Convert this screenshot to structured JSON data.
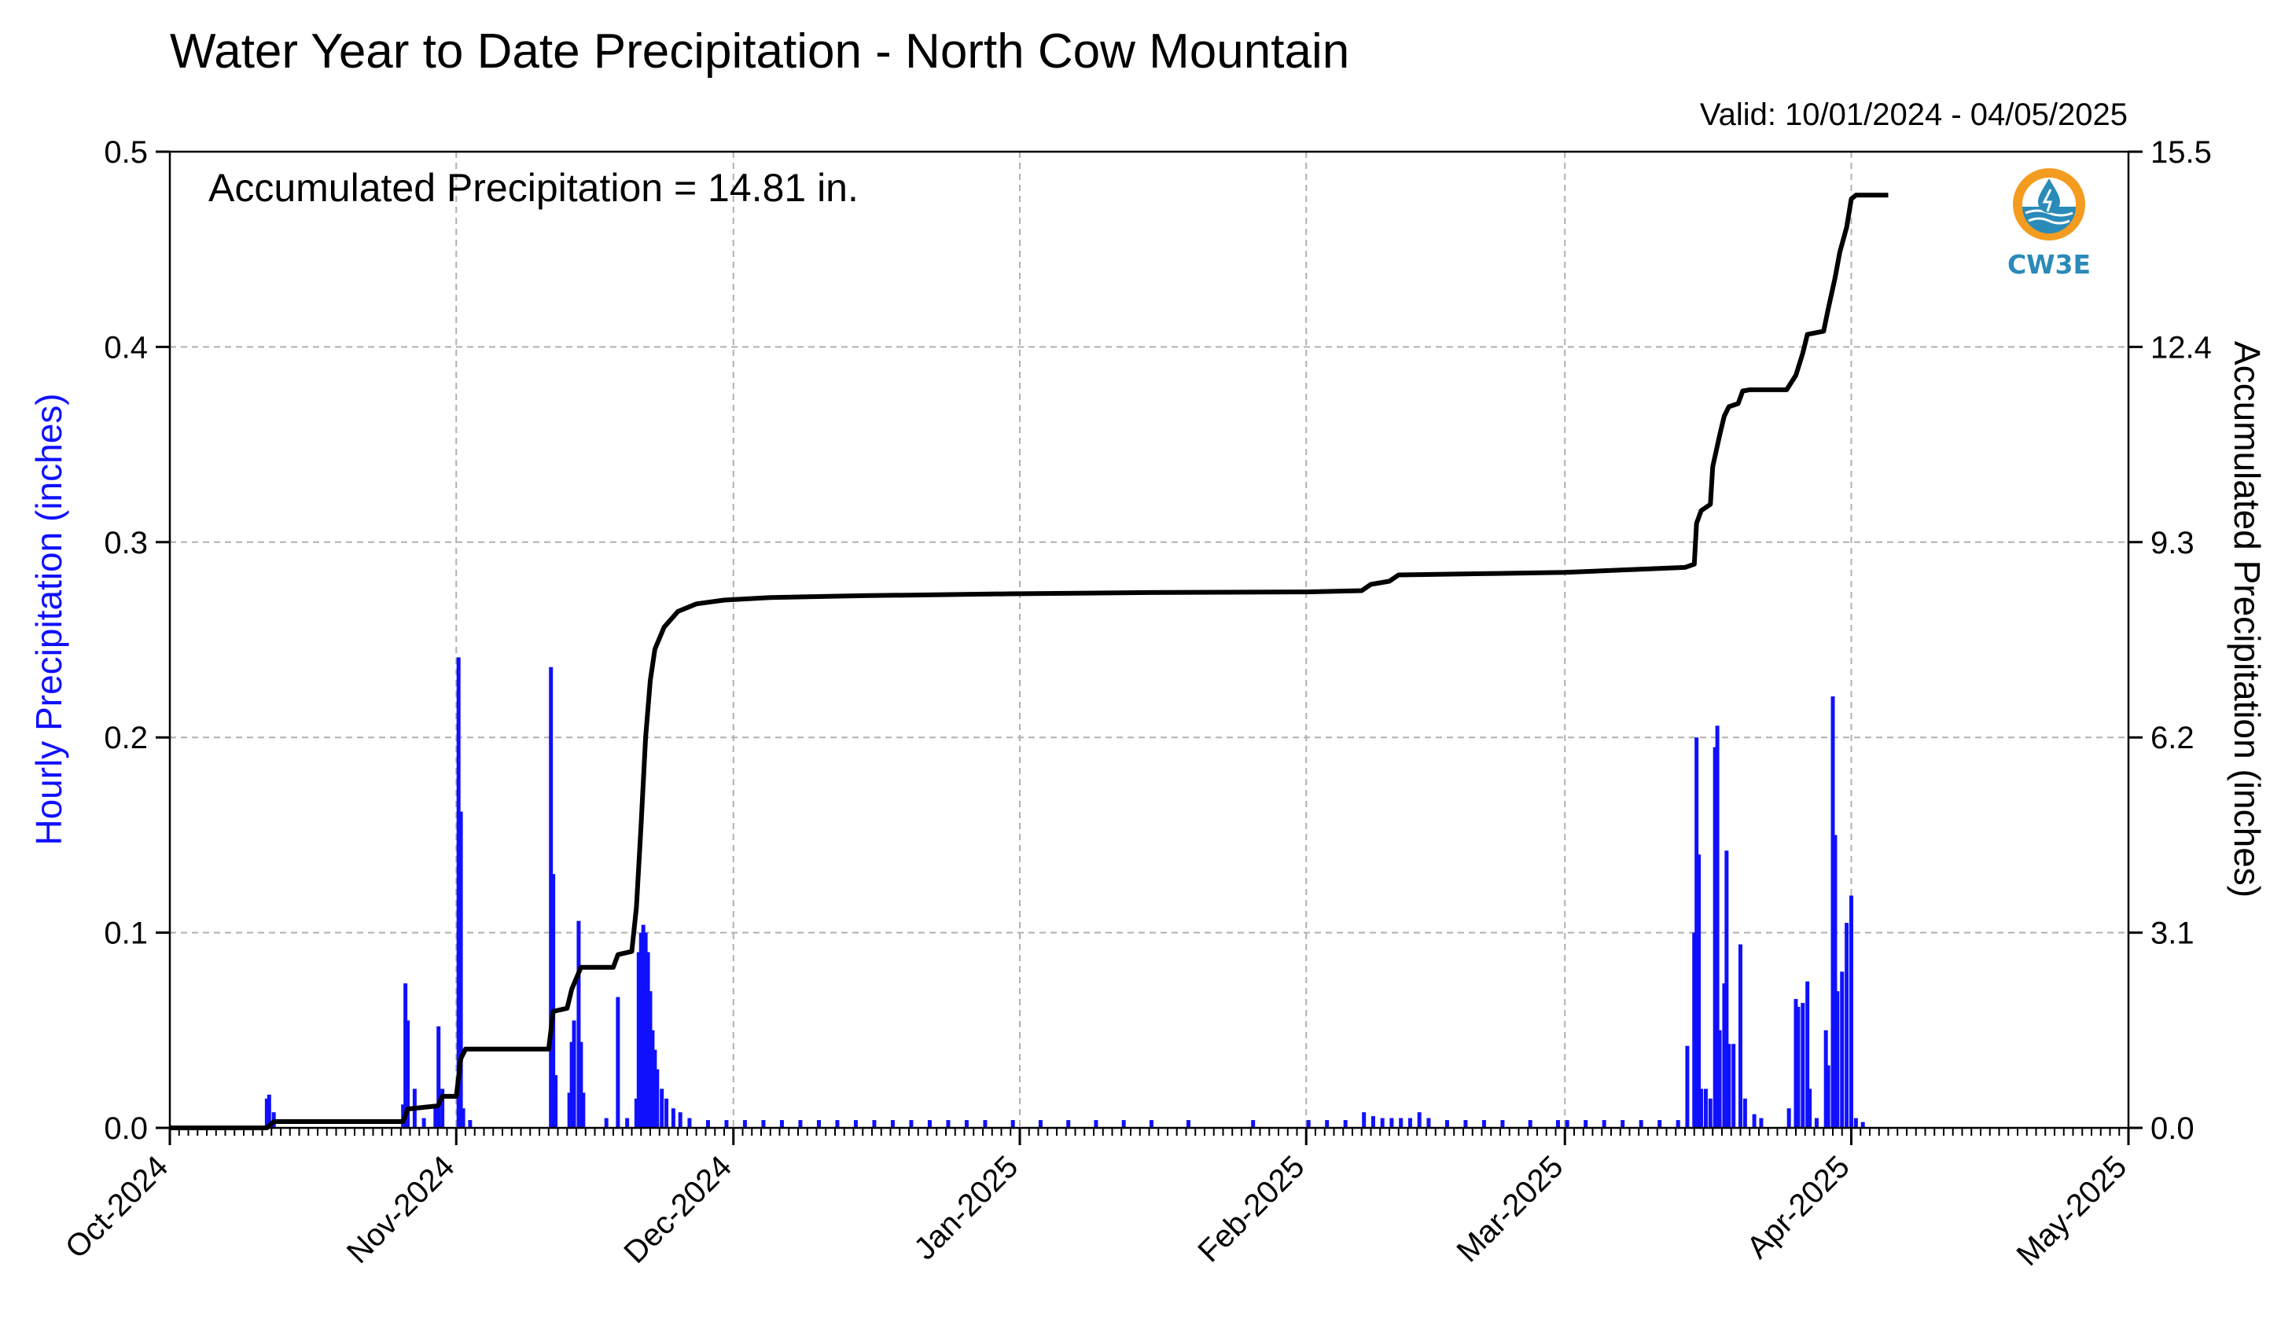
{
  "chart_data": {
    "type": "bar+line",
    "title": "Water Year to Date Precipitation - North Cow Mountain",
    "subtitle": "Valid: 10/01/2024 - 04/05/2025",
    "annotation": "Accumulated Precipitation = 14.81 in.",
    "ylabel_left": "Hourly Precipitation (inches)",
    "ylabel_right": "Accumulated Precipitation (inches)",
    "ylim_left": [
      0,
      0.5
    ],
    "ylim_right": [
      0,
      15.5
    ],
    "xlim": [
      "2024-10-01",
      "2025-05-01"
    ],
    "x_ticks": [
      "Oct-2024",
      "Nov-2024",
      "Dec-2024",
      "Jan-2025",
      "Feb-2025",
      "Mar-2025",
      "Apr-2025",
      "May-2025"
    ],
    "y_ticks_left": [
      "0.0",
      "0.1",
      "0.2",
      "0.3",
      "0.4",
      "0.5"
    ],
    "y_ticks_right": [
      "0.0",
      "3.1",
      "6.2",
      "9.3",
      "12.4",
      "15.5"
    ],
    "grid": true,
    "colors": {
      "hourly": "#1010ff",
      "accumulated": "#000000",
      "grid": "#b0b0b0"
    },
    "series": [
      {
        "name": "Hourly Precipitation (inches)",
        "type": "bar",
        "points": [
          [
            "2024-10-11 12:00",
            0.015
          ],
          [
            "2024-10-11 18:00",
            0.017
          ],
          [
            "2024-10-12 06:00",
            0.008
          ],
          [
            "2024-10-26 06:00",
            0.012
          ],
          [
            "2024-10-26 12:00",
            0.074
          ],
          [
            "2024-10-26 18:00",
            0.055
          ],
          [
            "2024-10-27 12:00",
            0.02
          ],
          [
            "2024-10-28 12:00",
            0.005
          ],
          [
            "2024-10-29 18:00",
            0.012
          ],
          [
            "2024-10-30 02:00",
            0.052
          ],
          [
            "2024-10-30 12:00",
            0.02
          ],
          [
            "2024-11-01 06:00",
            0.241
          ],
          [
            "2024-11-01 12:00",
            0.162
          ],
          [
            "2024-11-01 18:00",
            0.01
          ],
          [
            "2024-11-02 12:00",
            0.004
          ],
          [
            "2024-11-11 06:00",
            0.236
          ],
          [
            "2024-11-11 12:00",
            0.13
          ],
          [
            "2024-11-11 18:00",
            0.027
          ],
          [
            "2024-11-13 06:00",
            0.018
          ],
          [
            "2024-11-13 12:00",
            0.044
          ],
          [
            "2024-11-13 18:00",
            0.055
          ],
          [
            "2024-11-14 06:00",
            0.106
          ],
          [
            "2024-11-14 12:00",
            0.044
          ],
          [
            "2024-11-14 18:00",
            0.018
          ],
          [
            "2024-11-17 06:00",
            0.005
          ],
          [
            "2024-11-18 12:00",
            0.067
          ],
          [
            "2024-11-19 12:00",
            0.005
          ],
          [
            "2024-11-20 12:00",
            0.015
          ],
          [
            "2024-11-20 18:00",
            0.09
          ],
          [
            "2024-11-21 00:00",
            0.1
          ],
          [
            "2024-11-21 06:00",
            0.104
          ],
          [
            "2024-11-21 12:00",
            0.1
          ],
          [
            "2024-11-21 18:00",
            0.09
          ],
          [
            "2024-11-22 00:00",
            0.07
          ],
          [
            "2024-11-22 06:00",
            0.05
          ],
          [
            "2024-11-22 12:00",
            0.04
          ],
          [
            "2024-11-22 18:00",
            0.03
          ],
          [
            "2024-11-23 06:00",
            0.02
          ],
          [
            "2024-11-23 18:00",
            0.015
          ],
          [
            "2024-11-24 12:00",
            0.01
          ],
          [
            "2024-11-25 06:00",
            0.008
          ],
          [
            "2024-11-26 06:00",
            0.005
          ],
          [
            "2024-11-28 06:00",
            0.004
          ],
          [
            "2024-11-30 06:00",
            0.004
          ],
          [
            "2024-12-02 06:00",
            0.004
          ],
          [
            "2024-12-04 06:00",
            0.004
          ],
          [
            "2024-12-06 06:00",
            0.004
          ],
          [
            "2024-12-08 06:00",
            0.004
          ],
          [
            "2024-12-10 06:00",
            0.004
          ],
          [
            "2024-12-12 06:00",
            0.004
          ],
          [
            "2024-12-14 06:00",
            0.004
          ],
          [
            "2024-12-16 06:00",
            0.004
          ],
          [
            "2024-12-18 06:00",
            0.004
          ],
          [
            "2024-12-20 06:00",
            0.004
          ],
          [
            "2024-12-22 06:00",
            0.004
          ],
          [
            "2024-12-24 06:00",
            0.004
          ],
          [
            "2024-12-26 06:00",
            0.004
          ],
          [
            "2024-12-28 06:00",
            0.004
          ],
          [
            "2024-12-31 06:00",
            0.004
          ],
          [
            "2025-01-03 06:00",
            0.004
          ],
          [
            "2025-01-06 06:00",
            0.004
          ],
          [
            "2025-01-09 06:00",
            0.004
          ],
          [
            "2025-01-12 06:00",
            0.004
          ],
          [
            "2025-01-15 06:00",
            0.004
          ],
          [
            "2025-01-19 06:00",
            0.004
          ],
          [
            "2025-01-26 06:00",
            0.004
          ],
          [
            "2025-02-01 06:00",
            0.004
          ],
          [
            "2025-02-03 06:00",
            0.004
          ],
          [
            "2025-02-05 06:00",
            0.004
          ],
          [
            "2025-02-07 06:00",
            0.008
          ],
          [
            "2025-02-08 06:00",
            0.006
          ],
          [
            "2025-02-09 06:00",
            0.005
          ],
          [
            "2025-02-10 06:00",
            0.005
          ],
          [
            "2025-02-11 06:00",
            0.005
          ],
          [
            "2025-02-12 06:00",
            0.005
          ],
          [
            "2025-02-13 06:00",
            0.008
          ],
          [
            "2025-02-14 06:00",
            0.005
          ],
          [
            "2025-02-16 06:00",
            0.004
          ],
          [
            "2025-02-18 06:00",
            0.004
          ],
          [
            "2025-02-20 06:00",
            0.004
          ],
          [
            "2025-02-22 06:00",
            0.004
          ],
          [
            "2025-02-25 06:00",
            0.004
          ],
          [
            "2025-02-28 06:00",
            0.004
          ],
          [
            "2025-03-01 06:00",
            0.004
          ],
          [
            "2025-03-03 06:00",
            0.004
          ],
          [
            "2025-03-05 06:00",
            0.004
          ],
          [
            "2025-03-07 06:00",
            0.004
          ],
          [
            "2025-03-09 06:00",
            0.004
          ],
          [
            "2025-03-11 06:00",
            0.004
          ],
          [
            "2025-03-13 06:00",
            0.004
          ],
          [
            "2025-03-14 06:00",
            0.042
          ],
          [
            "2025-03-15 00:00",
            0.1
          ],
          [
            "2025-03-15 06:00",
            0.2
          ],
          [
            "2025-03-15 12:00",
            0.14
          ],
          [
            "2025-03-15 18:00",
            0.02
          ],
          [
            "2025-03-16 06:00",
            0.02
          ],
          [
            "2025-03-16 18:00",
            0.015
          ],
          [
            "2025-03-17 06:00",
            0.195
          ],
          [
            "2025-03-17 12:00",
            0.206
          ],
          [
            "2025-03-17 18:00",
            0.05
          ],
          [
            "2025-03-18 06:00",
            0.074
          ],
          [
            "2025-03-18 12:00",
            0.142
          ],
          [
            "2025-03-18 18:00",
            0.043
          ],
          [
            "2025-03-19 06:00",
            0.043
          ],
          [
            "2025-03-20 00:00",
            0.094
          ],
          [
            "2025-03-20 12:00",
            0.015
          ],
          [
            "2025-03-21 12:00",
            0.007
          ],
          [
            "2025-03-22 06:00",
            0.005
          ],
          [
            "2025-03-25 06:00",
            0.01
          ],
          [
            "2025-03-26 00:00",
            0.066
          ],
          [
            "2025-03-26 06:00",
            0.062
          ],
          [
            "2025-03-26 18:00",
            0.064
          ],
          [
            "2025-03-27 06:00",
            0.075
          ],
          [
            "2025-03-27 12:00",
            0.02
          ],
          [
            "2025-03-28 06:00",
            0.005
          ],
          [
            "2025-03-29 06:00",
            0.05
          ],
          [
            "2025-03-29 12:00",
            0.032
          ],
          [
            "2025-03-30 00:00",
            0.221
          ],
          [
            "2025-03-30 06:00",
            0.15
          ],
          [
            "2025-03-30 12:00",
            0.07
          ],
          [
            "2025-03-31 00:00",
            0.08
          ],
          [
            "2025-03-31 12:00",
            0.105
          ],
          [
            "2025-04-01 00:00",
            0.119
          ],
          [
            "2025-04-01 12:00",
            0.005
          ],
          [
            "2025-04-02 06:00",
            0.003
          ]
        ]
      },
      {
        "name": "Accumulated Precipitation (inches)",
        "type": "line",
        "points": [
          [
            "2024-10-01 00:00",
            0
          ],
          [
            "2024-10-11 12:00",
            0
          ],
          [
            "2024-10-12 06:00",
            0.1
          ],
          [
            "2024-10-26 06:00",
            0.1
          ],
          [
            "2024-10-26 18:00",
            0.3
          ],
          [
            "2024-10-30 00:00",
            0.35
          ],
          [
            "2024-10-30 12:00",
            0.5
          ],
          [
            "2024-11-01 00:00",
            0.5
          ],
          [
            "2024-11-01 12:00",
            1.1
          ],
          [
            "2024-11-02 00:00",
            1.25
          ],
          [
            "2024-11-11 00:00",
            1.25
          ],
          [
            "2024-11-11 12:00",
            1.85
          ],
          [
            "2024-11-13 00:00",
            1.9
          ],
          [
            "2024-11-13 12:00",
            2.2
          ],
          [
            "2024-11-14 12:00",
            2.55
          ],
          [
            "2024-11-18 00:00",
            2.55
          ],
          [
            "2024-11-18 12:00",
            2.75
          ],
          [
            "2024-11-20 00:00",
            2.8
          ],
          [
            "2024-11-20 12:00",
            3.5
          ],
          [
            "2024-11-21 00:00",
            4.8
          ],
          [
            "2024-11-21 12:00",
            6.2
          ],
          [
            "2024-11-22 00:00",
            7.1
          ],
          [
            "2024-11-22 12:00",
            7.6
          ],
          [
            "2024-11-23 12:00",
            7.95
          ],
          [
            "2024-11-25 00:00",
            8.2
          ],
          [
            "2024-11-27 00:00",
            8.32
          ],
          [
            "2024-11-30 00:00",
            8.38
          ],
          [
            "2024-12-05 00:00",
            8.42
          ],
          [
            "2024-12-15 00:00",
            8.45
          ],
          [
            "2024-12-31 00:00",
            8.48
          ],
          [
            "2025-01-15 00:00",
            8.5
          ],
          [
            "2025-02-01 00:00",
            8.51
          ],
          [
            "2025-02-07 00:00",
            8.53
          ],
          [
            "2025-02-08 00:00",
            8.63
          ],
          [
            "2025-02-10 00:00",
            8.68
          ],
          [
            "2025-02-11 00:00",
            8.78
          ],
          [
            "2025-02-20 00:00",
            8.8
          ],
          [
            "2025-03-01 00:00",
            8.82
          ],
          [
            "2025-03-14 00:00",
            8.9
          ],
          [
            "2025-03-15 00:00",
            8.95
          ],
          [
            "2025-03-15 06:00",
            9.6
          ],
          [
            "2025-03-15 18:00",
            9.8
          ],
          [
            "2025-03-16 18:00",
            9.9
          ],
          [
            "2025-03-17 00:00",
            10.5
          ],
          [
            "2025-03-17 18:00",
            11.0
          ],
          [
            "2025-03-18 06:00",
            11.3
          ],
          [
            "2025-03-18 18:00",
            11.45
          ],
          [
            "2025-03-19 18:00",
            11.5
          ],
          [
            "2025-03-20 06:00",
            11.7
          ],
          [
            "2025-03-21 00:00",
            11.72
          ],
          [
            "2025-03-25 00:00",
            11.72
          ],
          [
            "2025-03-26 00:00",
            11.95
          ],
          [
            "2025-03-26 18:00",
            12.3
          ],
          [
            "2025-03-27 06:00",
            12.6
          ],
          [
            "2025-03-29 00:00",
            12.65
          ],
          [
            "2025-03-29 12:00",
            13.0
          ],
          [
            "2025-03-30 06:00",
            13.5
          ],
          [
            "2025-03-30 18:00",
            13.9
          ],
          [
            "2025-03-31 12:00",
            14.3
          ],
          [
            "2025-04-01 00:00",
            14.75
          ],
          [
            "2025-04-01 12:00",
            14.81
          ],
          [
            "2025-04-05 00:00",
            14.81
          ]
        ]
      }
    ]
  }
}
